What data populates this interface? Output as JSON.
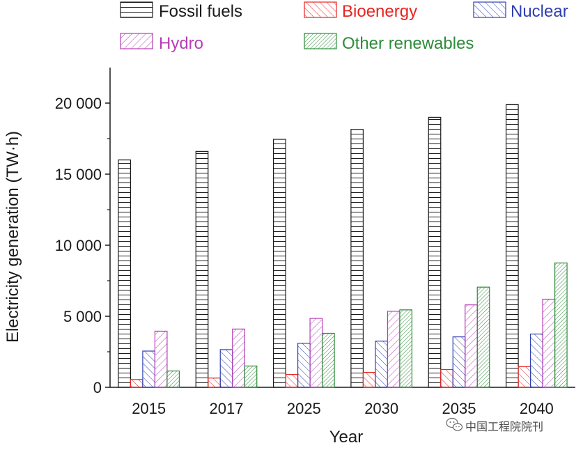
{
  "chart_data": {
    "type": "bar",
    "title": "",
    "xlabel": "Year",
    "ylabel": "Electricity generation (TW·h)",
    "ylim": [
      0,
      22500
    ],
    "yticks": [
      0,
      5000,
      10000,
      15000,
      20000
    ],
    "ytick_labels": [
      "0",
      "5 000",
      "10 000",
      "15 000",
      "20 000"
    ],
    "categories": [
      "2015",
      "2017",
      "2025",
      "2030",
      "2035",
      "2040"
    ],
    "legend_position": "top",
    "series": [
      {
        "name": "Fossil fuels",
        "color": "#1a1a1a",
        "pattern": "horizontal",
        "values": [
          16000,
          16600,
          17450,
          18150,
          19000,
          19900
        ]
      },
      {
        "name": "Bioenergy",
        "color": "#e8231f",
        "pattern": "diagonal",
        "values": [
          550,
          650,
          900,
          1050,
          1250,
          1450
        ]
      },
      {
        "name": "Nuclear",
        "color": "#2e3fb3",
        "pattern": "diagonal",
        "values": [
          2550,
          2650,
          3100,
          3250,
          3550,
          3750
        ]
      },
      {
        "name": "Hydro",
        "color": "#b53db5",
        "pattern": "back-diagonal",
        "values": [
          3950,
          4100,
          4850,
          5350,
          5800,
          6200
        ]
      },
      {
        "name": "Other renewables",
        "color": "#2e8b3a",
        "pattern": "back-diagonal-dense",
        "values": [
          1150,
          1500,
          3800,
          5450,
          7050,
          8750
        ]
      }
    ]
  },
  "watermark": {
    "icon": "wechat-icon",
    "text": "中国工程院院刊"
  }
}
